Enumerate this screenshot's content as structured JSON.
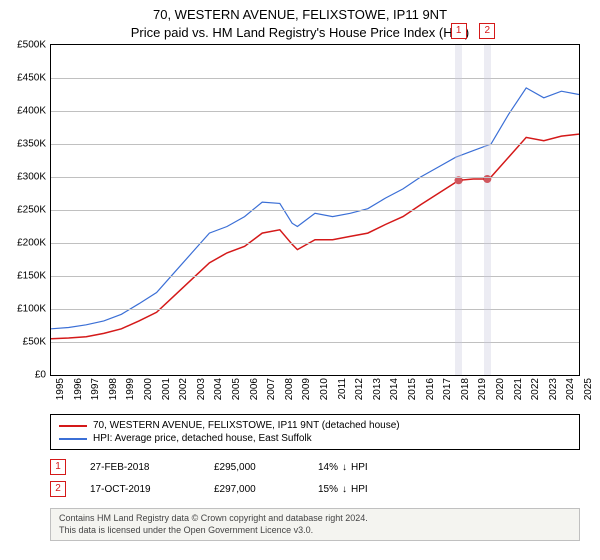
{
  "title_line1": "70, WESTERN AVENUE, FELIXSTOWE, IP11 9NT",
  "title_line2": "Price paid vs. HM Land Registry's House Price Index (HPI)",
  "chart": {
    "type": "line",
    "background_color": "#ffffff",
    "grid_color": "#c0c0c0",
    "border_color": "#000000",
    "x_start": 1995,
    "x_end": 2025,
    "xticks": [
      1995,
      1996,
      1997,
      1998,
      1999,
      2000,
      2001,
      2002,
      2003,
      2004,
      2005,
      2006,
      2007,
      2008,
      2009,
      2010,
      2011,
      2012,
      2013,
      2014,
      2015,
      2016,
      2017,
      2018,
      2019,
      2020,
      2021,
      2022,
      2023,
      2024,
      2025
    ],
    "y_min": 0,
    "y_max": 500000,
    "ytick_step": 50000,
    "yticks": [
      "£0",
      "£50K",
      "£100K",
      "£150K",
      "£200K",
      "£250K",
      "£300K",
      "£350K",
      "£400K",
      "£450K",
      "£500K"
    ],
    "label_fontsize": 10,
    "title_fontsize": 13,
    "series": [
      {
        "name": "property",
        "color": "#d41919",
        "line_width": 1.5,
        "legend": "70, WESTERN AVENUE, FELIXSTOWE, IP11 9NT (detached house)",
        "x": [
          1995,
          1996,
          1997,
          1998,
          1999,
          2000,
          2001,
          2002,
          2003,
          2004,
          2005,
          2006,
          2007,
          2008,
          2008.7,
          2009,
          2010,
          2011,
          2012,
          2013,
          2014,
          2015,
          2016,
          2017,
          2018,
          2018.16,
          2019,
          2019.79,
          2020,
          2021,
          2022,
          2023,
          2024,
          2025
        ],
        "y": [
          55000,
          56000,
          58000,
          63000,
          70000,
          82000,
          95000,
          120000,
          145000,
          170000,
          185000,
          195000,
          215000,
          220000,
          198000,
          190000,
          205000,
          205000,
          210000,
          215000,
          228000,
          240000,
          258000,
          275000,
          292000,
          295000,
          297000,
          297000,
          300000,
          330000,
          360000,
          355000,
          362000,
          365000
        ]
      },
      {
        "name": "hpi",
        "color": "#3b6fd6",
        "line_width": 1.2,
        "legend": "HPI: Average price, detached house, East Suffolk",
        "x": [
          1995,
          1996,
          1997,
          1998,
          1999,
          2000,
          2001,
          2002,
          2003,
          2004,
          2005,
          2006,
          2007,
          2008,
          2008.7,
          2009,
          2010,
          2011,
          2012,
          2013,
          2014,
          2015,
          2016,
          2017,
          2018,
          2019,
          2020,
          2021,
          2022,
          2023,
          2024,
          2025
        ],
        "y": [
          70000,
          72000,
          76000,
          82000,
          92000,
          108000,
          125000,
          155000,
          185000,
          215000,
          225000,
          240000,
          262000,
          260000,
          230000,
          225000,
          245000,
          240000,
          245000,
          252000,
          268000,
          282000,
          300000,
          315000,
          330000,
          340000,
          350000,
          395000,
          435000,
          420000,
          430000,
          425000
        ]
      }
    ],
    "sale_markers": [
      {
        "index": 1,
        "x": 2018.16,
        "y": 295000,
        "color": "#d41919",
        "dot_radius": 4,
        "band_width_years": 0.4
      },
      {
        "index": 2,
        "x": 2019.79,
        "y": 297000,
        "color": "#d41919",
        "dot_radius": 4,
        "band_width_years": 0.4
      }
    ],
    "marker_band_color": "rgba(200,200,220,0.35)"
  },
  "transactions": [
    {
      "badge": "1",
      "badge_border": "#d41919",
      "date": "27-FEB-2018",
      "price": "£295,000",
      "diff_pct": "14%",
      "diff_dir": "down",
      "diff_label": "HPI"
    },
    {
      "badge": "2",
      "badge_border": "#d41919",
      "date": "17-OCT-2019",
      "price": "£297,000",
      "diff_pct": "15%",
      "diff_dir": "down",
      "diff_label": "HPI"
    }
  ],
  "footer_line1": "Contains HM Land Registry data © Crown copyright and database right 2024.",
  "footer_line2": "This data is licensed under the Open Government Licence v3.0.",
  "arrow_down": "↓"
}
